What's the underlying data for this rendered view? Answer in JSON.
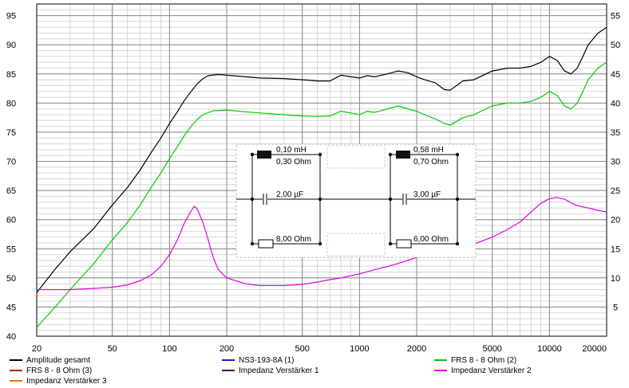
{
  "chart_data": {
    "type": "line",
    "x_scale": "log",
    "xlim": [
      20,
      20000
    ],
    "x_ticks": [
      20,
      50,
      100,
      200,
      500,
      1000,
      2000,
      5000,
      10000,
      20000
    ],
    "y_left": {
      "lim": [
        40,
        97
      ],
      "ticks": [
        40,
        45,
        50,
        55,
        60,
        65,
        70,
        75,
        80,
        85,
        90,
        95
      ]
    },
    "y_right": {
      "lim": [
        0,
        57
      ],
      "ticks": [
        5,
        10,
        15,
        20,
        25,
        30,
        35,
        40,
        45,
        50,
        55
      ]
    },
    "grid": true,
    "legend_position": "bottom",
    "series": [
      {
        "name": "Amplitude gesamt",
        "color": "#000000",
        "axis": "left",
        "points": [
          [
            20,
            47.5
          ],
          [
            25,
            51.5
          ],
          [
            30,
            54.5
          ],
          [
            40,
            58.5
          ],
          [
            50,
            62.5
          ],
          [
            60,
            65.5
          ],
          [
            70,
            68.5
          ],
          [
            80,
            71.5
          ],
          [
            90,
            74.0
          ],
          [
            100,
            76.5
          ],
          [
            110,
            78.5
          ],
          [
            120,
            80.5
          ],
          [
            130,
            82.0
          ],
          [
            140,
            83.3
          ],
          [
            150,
            84.2
          ],
          [
            160,
            84.7
          ],
          [
            180,
            84.9
          ],
          [
            200,
            84.8
          ],
          [
            250,
            84.5
          ],
          [
            300,
            84.3
          ],
          [
            400,
            84.2
          ],
          [
            500,
            84.0
          ],
          [
            600,
            83.8
          ],
          [
            700,
            83.8
          ],
          [
            800,
            84.8
          ],
          [
            900,
            84.5
          ],
          [
            1000,
            84.3
          ],
          [
            1100,
            84.7
          ],
          [
            1200,
            84.5
          ],
          [
            1400,
            85.0
          ],
          [
            1600,
            85.5
          ],
          [
            1800,
            85.2
          ],
          [
            2000,
            84.5
          ],
          [
            2200,
            84.0
          ],
          [
            2500,
            83.5
          ],
          [
            2800,
            82.3
          ],
          [
            3000,
            82.2
          ],
          [
            3500,
            83.8
          ],
          [
            4000,
            84.0
          ],
          [
            5000,
            85.5
          ],
          [
            6000,
            86.0
          ],
          [
            7000,
            86.0
          ],
          [
            8000,
            86.3
          ],
          [
            9000,
            87.0
          ],
          [
            10000,
            88.0
          ],
          [
            11000,
            87.3
          ],
          [
            12000,
            85.5
          ],
          [
            13000,
            85.0
          ],
          [
            14000,
            86.0
          ],
          [
            15000,
            88.0
          ],
          [
            16000,
            90.0
          ],
          [
            18000,
            92.0
          ],
          [
            20000,
            93.0
          ]
        ]
      },
      {
        "name": "FRS 8 - 8 Ohm (2)",
        "color": "#00cc00",
        "axis": "left",
        "points": [
          [
            20,
            41.5
          ],
          [
            25,
            45.0
          ],
          [
            30,
            48.0
          ],
          [
            40,
            52.5
          ],
          [
            50,
            56.5
          ],
          [
            60,
            59.5
          ],
          [
            70,
            62.5
          ],
          [
            80,
            65.5
          ],
          [
            90,
            68.0
          ],
          [
            100,
            70.5
          ],
          [
            110,
            72.5
          ],
          [
            120,
            74.5
          ],
          [
            130,
            76.0
          ],
          [
            140,
            77.2
          ],
          [
            150,
            78.0
          ],
          [
            170,
            78.7
          ],
          [
            200,
            78.8
          ],
          [
            250,
            78.5
          ],
          [
            300,
            78.3
          ],
          [
            400,
            78.0
          ],
          [
            500,
            77.8
          ],
          [
            600,
            77.7
          ],
          [
            700,
            77.8
          ],
          [
            800,
            78.6
          ],
          [
            900,
            78.3
          ],
          [
            1000,
            78.0
          ],
          [
            1100,
            78.6
          ],
          [
            1200,
            78.4
          ],
          [
            1400,
            79.0
          ],
          [
            1600,
            79.5
          ],
          [
            1800,
            79.0
          ],
          [
            2000,
            78.6
          ],
          [
            2200,
            78.0
          ],
          [
            2500,
            77.3
          ],
          [
            2800,
            76.5
          ],
          [
            3000,
            76.2
          ],
          [
            3500,
            77.5
          ],
          [
            4000,
            78.0
          ],
          [
            5000,
            79.5
          ],
          [
            6000,
            80.0
          ],
          [
            7000,
            80.0
          ],
          [
            8000,
            80.3
          ],
          [
            9000,
            81.0
          ],
          [
            10000,
            82.0
          ],
          [
            11000,
            81.3
          ],
          [
            12000,
            79.5
          ],
          [
            13000,
            79.0
          ],
          [
            14000,
            80.0
          ],
          [
            15000,
            82.0
          ],
          [
            16000,
            84.0
          ],
          [
            18000,
            86.0
          ],
          [
            20000,
            87.0
          ]
        ]
      },
      {
        "name": "Impedanz Verstärker 2",
        "color": "#e000e0",
        "axis": "right",
        "points": [
          [
            20,
            8.0
          ],
          [
            30,
            8.0
          ],
          [
            40,
            8.2
          ],
          [
            50,
            8.4
          ],
          [
            60,
            8.8
          ],
          [
            70,
            9.5
          ],
          [
            80,
            10.5
          ],
          [
            90,
            12.0
          ],
          [
            100,
            14.0
          ],
          [
            110,
            16.5
          ],
          [
            120,
            19.5
          ],
          [
            130,
            21.5
          ],
          [
            135,
            22.3
          ],
          [
            140,
            21.8
          ],
          [
            150,
            19.5
          ],
          [
            160,
            16.5
          ],
          [
            170,
            13.5
          ],
          [
            180,
            11.5
          ],
          [
            200,
            10.0
          ],
          [
            250,
            9.0
          ],
          [
            300,
            8.7
          ],
          [
            400,
            8.7
          ],
          [
            500,
            8.9
          ],
          [
            600,
            9.3
          ],
          [
            700,
            9.7
          ],
          [
            800,
            10.0
          ],
          [
            1000,
            10.7
          ],
          [
            1200,
            11.4
          ],
          [
            1500,
            12.2
          ],
          [
            2000,
            13.5
          ],
          [
            2500,
            14.2
          ],
          [
            3000,
            14.8
          ],
          [
            4000,
            15.8
          ],
          [
            5000,
            17.0
          ],
          [
            6000,
            18.3
          ],
          [
            7000,
            19.6
          ],
          [
            8000,
            21.3
          ],
          [
            9000,
            22.8
          ],
          [
            10000,
            23.6
          ],
          [
            11000,
            23.8
          ],
          [
            12000,
            23.5
          ],
          [
            13000,
            22.9
          ],
          [
            14000,
            22.4
          ],
          [
            16000,
            22.0
          ],
          [
            18000,
            21.6
          ],
          [
            20000,
            21.3
          ]
        ]
      }
    ],
    "legend": [
      {
        "name": "Amplitude gesamt",
        "color": "#000000"
      },
      {
        "name": "NS3-193-8A (1)",
        "color": "#1c1cd0"
      },
      {
        "name": "FRS 8 - 8 Ohm (2)",
        "color": "#00cc00"
      },
      {
        "name": "FRS 8 - 8 Ohm (3)",
        "color": "#d00000"
      },
      {
        "name": "Impedanz Verstärker 1",
        "color": "#3a0050"
      },
      {
        "name": "Impedanz Verstärker 2",
        "color": "#e000e0"
      },
      {
        "name": "Impedanz Verstärker 3",
        "color": "#e08000"
      }
    ]
  },
  "crossover": {
    "left": {
      "inductor": "0,10 mH",
      "resistance": "0,30 Ohm",
      "capacitor": "2,00 µF",
      "resistor": "8,00 Ohm"
    },
    "right": {
      "inductor": "0,58 mH",
      "resistance": "0,70 Ohm",
      "capacitor": "3,00 µF",
      "resistor": "6,00 Ohm"
    }
  }
}
